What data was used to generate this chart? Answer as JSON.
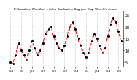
{
  "title": "Milwaukee Weather - Solar Radiation Avg per Day W/m2/minute",
  "line_color": "#ff0000",
  "dot_color": "#000000",
  "bg_color": "#ffffff",
  "plot_bg": "#ffffff",
  "grid_color": "#888888",
  "ylim": [
    3,
    27
  ],
  "yticks": [
    5,
    10,
    15,
    20,
    25
  ],
  "values": [
    5,
    4.5,
    8,
    13,
    10,
    8,
    6,
    10,
    14,
    11,
    8,
    10,
    13,
    17,
    19,
    20,
    16,
    13,
    11,
    10,
    12,
    16,
    20,
    22,
    19,
    15,
    12,
    9,
    7,
    9,
    14,
    17,
    15,
    12,
    9,
    11,
    16,
    21,
    24,
    22,
    18,
    14
  ],
  "n_points": 42,
  "grid_positions": [
    0,
    4,
    8,
    12,
    16,
    20,
    24,
    28,
    32,
    36,
    40
  ],
  "x_tick_labels": [
    "J'02",
    "J'02",
    "J'03",
    "J'03",
    "J'03",
    "J'03",
    "J'04",
    "J'04",
    "J'04",
    "J'04",
    "J'05"
  ],
  "ytick_fontsize": 3.5,
  "xtick_fontsize": 2.5,
  "title_fontsize": 3.0
}
